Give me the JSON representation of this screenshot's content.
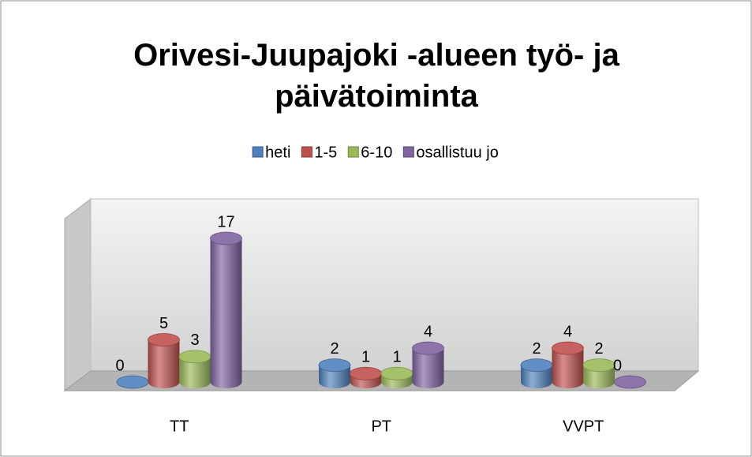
{
  "chart_data": {
    "type": "bar",
    "title": "Orivesi-Juupajoki -alueen työ- ja päivätoiminta",
    "categories": [
      "TT",
      "PT",
      "VVPT"
    ],
    "series": [
      {
        "name": "heti",
        "color": "#4f81bd",
        "values": [
          0,
          2,
          2
        ]
      },
      {
        "name": "1-5",
        "color": "#c0504d",
        "values": [
          5,
          1,
          4
        ]
      },
      {
        "name": "6-10",
        "color": "#9bbb59",
        "values": [
          3,
          1,
          2
        ]
      },
      {
        "name": "osallistuu jo",
        "color": "#8064a2",
        "values": [
          17,
          4,
          0
        ]
      }
    ],
    "legend": "top",
    "data_labels": true
  }
}
